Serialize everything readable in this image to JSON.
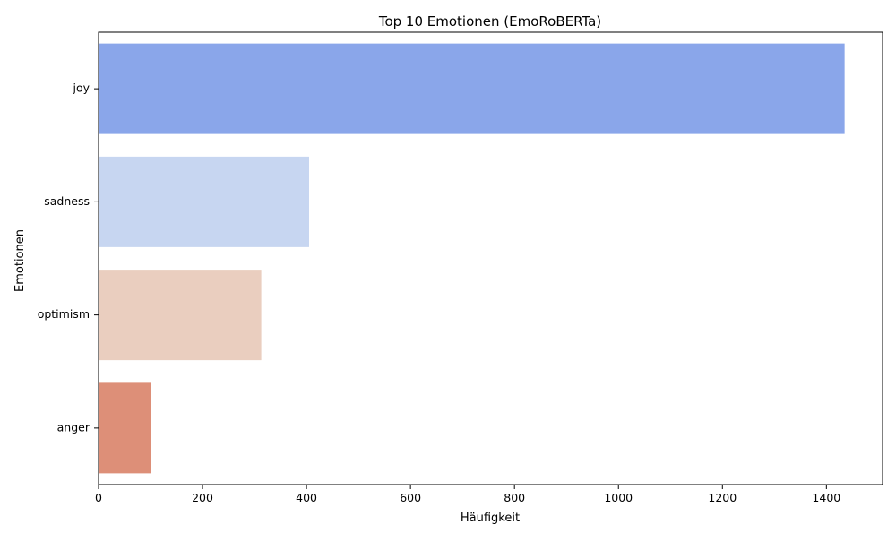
{
  "chart_data": {
    "type": "bar",
    "orientation": "horizontal",
    "title": "Top 10 Emotionen (EmoRoBERTa)",
    "xlabel": "Häufigkeit",
    "ylabel": "Emotionen",
    "categories": [
      "joy",
      "sadness",
      "optimism",
      "anger"
    ],
    "values": [
      1435,
      405,
      313,
      101
    ],
    "colors": [
      "#8aa6ea",
      "#c7d6f1",
      "#eacebf",
      "#dd8f78"
    ],
    "xlim": [
      0,
      1508
    ],
    "xticks": [
      0,
      200,
      400,
      600,
      800,
      1000,
      1200,
      1400
    ],
    "grid": false,
    "legend": "none"
  }
}
